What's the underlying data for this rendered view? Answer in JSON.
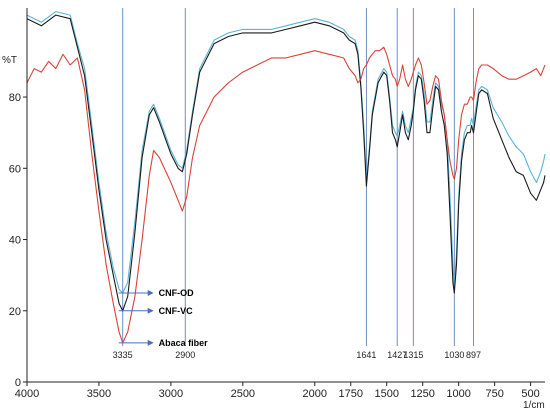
{
  "chart_data": {
    "type": "line",
    "title": "",
    "xlabel": "1/cm",
    "ylabel": "%T",
    "xlim": [
      4000,
      400
    ],
    "ylim": [
      0,
      105
    ],
    "x_reversed": true,
    "grid": false,
    "x_ticks": [
      4000,
      3500,
      3000,
      2500,
      2000,
      1750,
      1500,
      1250,
      1000,
      750,
      500
    ],
    "y_ticks": [
      0,
      20,
      40,
      60,
      80
    ],
    "peak_lines": [
      {
        "x": 3335,
        "label": "3335"
      },
      {
        "x": 2900,
        "label": "2900"
      },
      {
        "x": 1641,
        "label": "1641"
      },
      {
        "x": 1427,
        "label": "1427"
      },
      {
        "x": 1315,
        "label": "1315"
      },
      {
        "x": 1030,
        "label": "1030"
      },
      {
        "x": 897,
        "label": "897"
      }
    ],
    "series": [
      {
        "name": "CNF-OD",
        "color": "#5ab4d6",
        "points": [
          [
            4000,
            103
          ],
          [
            3900,
            101
          ],
          [
            3800,
            104
          ],
          [
            3700,
            103
          ],
          [
            3650,
            95
          ],
          [
            3600,
            88
          ],
          [
            3550,
            72
          ],
          [
            3500,
            56
          ],
          [
            3450,
            42
          ],
          [
            3400,
            32
          ],
          [
            3360,
            26
          ],
          [
            3335,
            25
          ],
          [
            3300,
            28
          ],
          [
            3250,
            45
          ],
          [
            3200,
            65
          ],
          [
            3150,
            76
          ],
          [
            3120,
            78
          ],
          [
            3080,
            74
          ],
          [
            3000,
            65
          ],
          [
            2950,
            61
          ],
          [
            2920,
            60
          ],
          [
            2890,
            65
          ],
          [
            2850,
            76
          ],
          [
            2800,
            88
          ],
          [
            2700,
            96
          ],
          [
            2600,
            98
          ],
          [
            2500,
            99
          ],
          [
            2400,
            99
          ],
          [
            2300,
            99
          ],
          [
            2200,
            100
          ],
          [
            2100,
            101
          ],
          [
            2000,
            102
          ],
          [
            1900,
            101
          ],
          [
            1800,
            99
          ],
          [
            1760,
            97
          ],
          [
            1720,
            96
          ],
          [
            1700,
            93
          ],
          [
            1680,
            84
          ],
          [
            1660,
            72
          ],
          [
            1641,
            57
          ],
          [
            1620,
            66
          ],
          [
            1600,
            76
          ],
          [
            1560,
            85
          ],
          [
            1520,
            88
          ],
          [
            1500,
            87
          ],
          [
            1480,
            80
          ],
          [
            1460,
            72
          ],
          [
            1440,
            70
          ],
          [
            1427,
            69
          ],
          [
            1410,
            72
          ],
          [
            1390,
            76
          ],
          [
            1370,
            72
          ],
          [
            1350,
            70
          ],
          [
            1330,
            74
          ],
          [
            1315,
            77
          ],
          [
            1300,
            83
          ],
          [
            1280,
            87
          ],
          [
            1260,
            86
          ],
          [
            1240,
            81
          ],
          [
            1220,
            73
          ],
          [
            1200,
            73
          ],
          [
            1180,
            79
          ],
          [
            1160,
            84
          ],
          [
            1140,
            83
          ],
          [
            1120,
            78
          ],
          [
            1100,
            75
          ],
          [
            1080,
            68
          ],
          [
            1060,
            52
          ],
          [
            1040,
            33
          ],
          [
            1030,
            27
          ],
          [
            1015,
            36
          ],
          [
            1000,
            52
          ],
          [
            980,
            64
          ],
          [
            960,
            70
          ],
          [
            940,
            72
          ],
          [
            920,
            72
          ],
          [
            910,
            74
          ],
          [
            897,
            72
          ],
          [
            880,
            77
          ],
          [
            860,
            82
          ],
          [
            840,
            83
          ],
          [
            800,
            82
          ],
          [
            760,
            77
          ],
          [
            700,
            73
          ],
          [
            650,
            69
          ],
          [
            600,
            66
          ],
          [
            550,
            64
          ],
          [
            500,
            59
          ],
          [
            460,
            56
          ],
          [
            430,
            59
          ],
          [
            410,
            62
          ],
          [
            400,
            64
          ]
        ]
      },
      {
        "name": "CNF-VC",
        "color": "#1a1a1a",
        "points": [
          [
            4000,
            102
          ],
          [
            3900,
            100
          ],
          [
            3800,
            103
          ],
          [
            3700,
            102
          ],
          [
            3650,
            94
          ],
          [
            3600,
            86
          ],
          [
            3550,
            70
          ],
          [
            3500,
            54
          ],
          [
            3450,
            40
          ],
          [
            3400,
            30
          ],
          [
            3360,
            22
          ],
          [
            3335,
            20
          ],
          [
            3300,
            24
          ],
          [
            3250,
            42
          ],
          [
            3200,
            63
          ],
          [
            3150,
            75
          ],
          [
            3120,
            77
          ],
          [
            3080,
            73
          ],
          [
            3000,
            64
          ],
          [
            2950,
            60
          ],
          [
            2920,
            59
          ],
          [
            2890,
            64
          ],
          [
            2850,
            75
          ],
          [
            2800,
            87
          ],
          [
            2700,
            95
          ],
          [
            2600,
            97
          ],
          [
            2500,
            98
          ],
          [
            2400,
            98
          ],
          [
            2300,
            98
          ],
          [
            2200,
            99
          ],
          [
            2100,
            100
          ],
          [
            2000,
            101
          ],
          [
            1900,
            100
          ],
          [
            1800,
            98
          ],
          [
            1760,
            96
          ],
          [
            1720,
            95
          ],
          [
            1700,
            92
          ],
          [
            1680,
            83
          ],
          [
            1660,
            70
          ],
          [
            1641,
            55
          ],
          [
            1620,
            65
          ],
          [
            1600,
            75
          ],
          [
            1560,
            84
          ],
          [
            1520,
            87
          ],
          [
            1500,
            86
          ],
          [
            1480,
            79
          ],
          [
            1460,
            70
          ],
          [
            1440,
            68
          ],
          [
            1427,
            66
          ],
          [
            1410,
            70
          ],
          [
            1390,
            75
          ],
          [
            1370,
            70
          ],
          [
            1350,
            68
          ],
          [
            1330,
            72
          ],
          [
            1315,
            76
          ],
          [
            1300,
            82
          ],
          [
            1280,
            86
          ],
          [
            1260,
            85
          ],
          [
            1240,
            79
          ],
          [
            1220,
            70
          ],
          [
            1200,
            70
          ],
          [
            1180,
            77
          ],
          [
            1160,
            83
          ],
          [
            1140,
            82
          ],
          [
            1120,
            76
          ],
          [
            1100,
            72
          ],
          [
            1080,
            64
          ],
          [
            1060,
            47
          ],
          [
            1040,
            28
          ],
          [
            1030,
            25
          ],
          [
            1015,
            33
          ],
          [
            1000,
            50
          ],
          [
            980,
            62
          ],
          [
            960,
            68
          ],
          [
            940,
            70
          ],
          [
            920,
            70
          ],
          [
            910,
            72
          ],
          [
            897,
            70
          ],
          [
            880,
            75
          ],
          [
            860,
            81
          ],
          [
            840,
            82
          ],
          [
            800,
            81
          ],
          [
            760,
            74
          ],
          [
            700,
            68
          ],
          [
            650,
            63
          ],
          [
            600,
            59
          ],
          [
            550,
            58
          ],
          [
            500,
            53
          ],
          [
            460,
            51
          ],
          [
            430,
            54
          ],
          [
            410,
            56
          ],
          [
            400,
            58
          ]
        ]
      },
      {
        "name": "Abaca fiber",
        "color": "#d9433a",
        "points": [
          [
            4000,
            84
          ],
          [
            3950,
            88
          ],
          [
            3900,
            87
          ],
          [
            3850,
            90
          ],
          [
            3800,
            88
          ],
          [
            3750,
            92
          ],
          [
            3700,
            89
          ],
          [
            3650,
            91
          ],
          [
            3600,
            82
          ],
          [
            3550,
            64
          ],
          [
            3500,
            48
          ],
          [
            3450,
            33
          ],
          [
            3400,
            22
          ],
          [
            3360,
            14
          ],
          [
            3335,
            11
          ],
          [
            3300,
            14
          ],
          [
            3250,
            24
          ],
          [
            3200,
            40
          ],
          [
            3150,
            58
          ],
          [
            3120,
            65
          ],
          [
            3080,
            63
          ],
          [
            3000,
            56
          ],
          [
            2950,
            51
          ],
          [
            2920,
            48
          ],
          [
            2890,
            52
          ],
          [
            2850,
            63
          ],
          [
            2800,
            72
          ],
          [
            2700,
            80
          ],
          [
            2600,
            84
          ],
          [
            2500,
            87
          ],
          [
            2400,
            89
          ],
          [
            2300,
            91
          ],
          [
            2200,
            91
          ],
          [
            2100,
            92
          ],
          [
            2000,
            93
          ],
          [
            1900,
            92
          ],
          [
            1800,
            91
          ],
          [
            1760,
            88
          ],
          [
            1720,
            86
          ],
          [
            1700,
            84
          ],
          [
            1680,
            85
          ],
          [
            1660,
            88
          ],
          [
            1641,
            89
          ],
          [
            1620,
            91
          ],
          [
            1580,
            93
          ],
          [
            1550,
            93
          ],
          [
            1520,
            94
          ],
          [
            1500,
            92
          ],
          [
            1480,
            89
          ],
          [
            1460,
            86
          ],
          [
            1440,
            85
          ],
          [
            1427,
            83
          ],
          [
            1410,
            85
          ],
          [
            1390,
            89
          ],
          [
            1370,
            85
          ],
          [
            1350,
            83
          ],
          [
            1330,
            85
          ],
          [
            1315,
            87
          ],
          [
            1300,
            89
          ],
          [
            1280,
            91
          ],
          [
            1260,
            89
          ],
          [
            1240,
            84
          ],
          [
            1220,
            78
          ],
          [
            1200,
            79
          ],
          [
            1180,
            83
          ],
          [
            1160,
            86
          ],
          [
            1140,
            85
          ],
          [
            1120,
            79
          ],
          [
            1100,
            75
          ],
          [
            1080,
            68
          ],
          [
            1060,
            62
          ],
          [
            1040,
            58
          ],
          [
            1030,
            57
          ],
          [
            1015,
            60
          ],
          [
            1000,
            68
          ],
          [
            980,
            75
          ],
          [
            960,
            78
          ],
          [
            940,
            78
          ],
          [
            920,
            80
          ],
          [
            910,
            80
          ],
          [
            897,
            79
          ],
          [
            880,
            84
          ],
          [
            860,
            88
          ],
          [
            840,
            89
          ],
          [
            800,
            89
          ],
          [
            760,
            88
          ],
          [
            700,
            86
          ],
          [
            650,
            85
          ],
          [
            600,
            85
          ],
          [
            550,
            86
          ],
          [
            500,
            87
          ],
          [
            460,
            88
          ],
          [
            430,
            86
          ],
          [
            410,
            88
          ],
          [
            400,
            89
          ]
        ]
      }
    ],
    "annotations": [
      {
        "text": "CNF-OD",
        "series": "CNF-OD",
        "x": 3335,
        "y": 25
      },
      {
        "text": "CNF-VC",
        "series": "CNF-VC",
        "x": 3335,
        "y": 20
      },
      {
        "text": "Abaca fiber",
        "series": "Abaca fiber",
        "x": 3335,
        "y": 11
      }
    ]
  },
  "labels": {
    "y_unit": "%T",
    "x_unit": "1/cm"
  }
}
